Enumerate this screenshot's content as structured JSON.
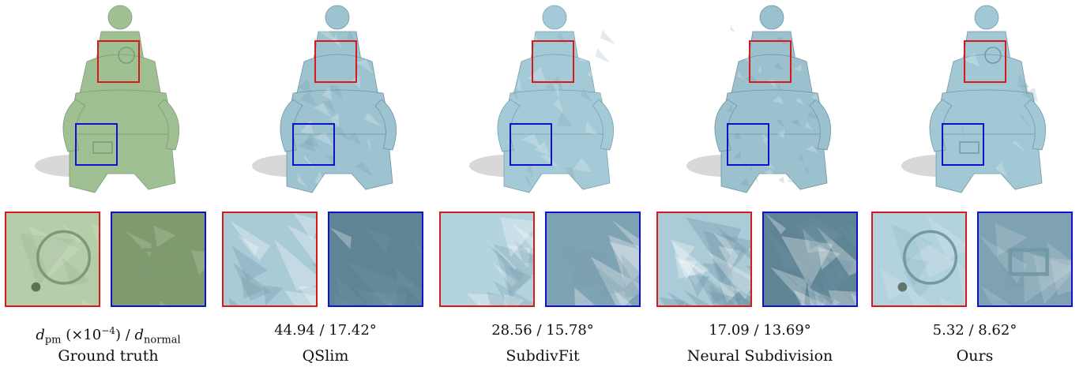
{
  "columns": [
    {
      "label": "Ground truth",
      "metric": "",
      "style": "gt",
      "color": "#9fc093",
      "shade": "#7d9b72",
      "crop_bg_red": "#b5cda8",
      "crop_bg_blue": "#7f9a6d"
    },
    {
      "label": "QSlim",
      "metric": "44.94 / 17.42°",
      "style": "facet-coarse",
      "color": "#9ec3d0",
      "shade": "#6f95a3",
      "crop_bg_red": "#a9cbd8",
      "crop_bg_blue": "#5f8494"
    },
    {
      "label": "SubdivFit",
      "metric": "28.56 / 15.78°",
      "style": "facet-grid",
      "color": "#a4cad7",
      "shade": "#7aa0ae",
      "crop_bg_red": "#b3d3df",
      "crop_bg_blue": "#7ea3b2"
    },
    {
      "label": "Neural Subdivision",
      "metric": "17.09 / 13.69°",
      "style": "facet-fine",
      "color": "#9cc1ce",
      "shade": "#6e93a1",
      "crop_bg_red": "#aacbd7",
      "crop_bg_blue": "#5f8595"
    },
    {
      "label": "Ours",
      "metric": "5.32 / 8.62°",
      "style": "smooth",
      "color": "#a2c8d5",
      "shade": "#7399a7",
      "crop_bg_red": "#b2d2de",
      "crop_bg_blue": "#7ea2b1"
    }
  ],
  "header_metric": {
    "d1": "d",
    "sub1": "pm",
    "scale": " (×10",
    "exp": "−4",
    "scale_close": ") / ",
    "d2": "d",
    "sub2": "normal"
  },
  "colors": {
    "red_box": "#d7191c",
    "blue_box": "#1010d0"
  }
}
